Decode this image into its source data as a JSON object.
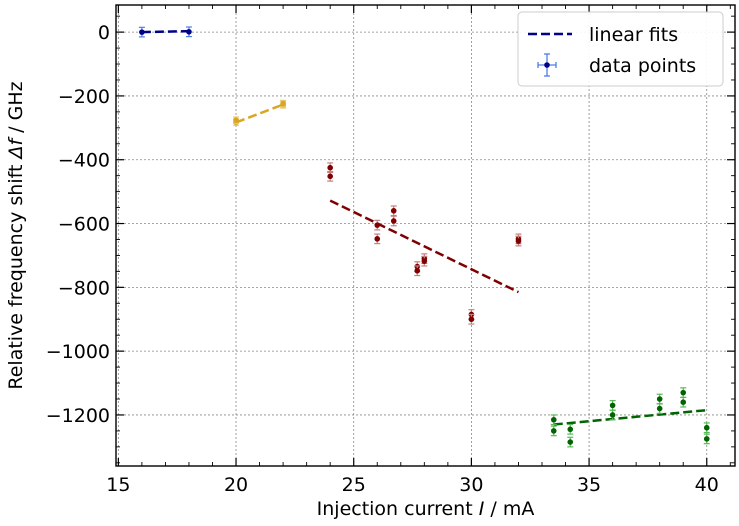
{
  "chart_data": {
    "type": "scatter",
    "xlabel": "Injection current",
    "xlabel_symbol": "I",
    "xlabel_unit": "/ mA",
    "ylabel": "Relative frequency shift",
    "ylabel_symbol": "Δf",
    "ylabel_unit": "/ GHz",
    "xlim": [
      14.9,
      41.2
    ],
    "ylim": [
      -1360,
      85
    ],
    "xticks": [
      15,
      20,
      25,
      30,
      35,
      40
    ],
    "xtick_labels": [
      "15",
      "20",
      "25",
      "30",
      "35",
      "40"
    ],
    "yticks": [
      0,
      -200,
      -400,
      -600,
      -800,
      -1000,
      -1200
    ],
    "ytick_labels": [
      "0",
      "−200",
      "−400",
      "−600",
      "−800",
      "−1000",
      "−1200"
    ],
    "grid": true,
    "legend": {
      "placement": "top-right",
      "fit_label": "linear fits",
      "points_label": "data points"
    },
    "groups": [
      {
        "color": "#00008b",
        "errorbar_color": "#4f7ee8",
        "points": [
          {
            "x": 16,
            "y": 0,
            "err": 15
          },
          {
            "x": 18,
            "y": 1,
            "err": 15
          }
        ],
        "fit": {
          "x": [
            16,
            18
          ],
          "y": [
            0,
            3
          ]
        }
      },
      {
        "color": "#daa520",
        "errorbar_color": "#e8c870",
        "points": [
          {
            "x": 20,
            "y": -282,
            "err": 10
          },
          {
            "x": 20,
            "y": -276,
            "err": 10
          },
          {
            "x": 22,
            "y": -228,
            "err": 10
          },
          {
            "x": 22,
            "y": -224,
            "err": 10
          }
        ],
        "fit": {
          "x": [
            20,
            22
          ],
          "y": [
            -283,
            -227
          ]
        }
      },
      {
        "color": "#800000",
        "errorbar_color": "#c48080",
        "points": [
          {
            "x": 24,
            "y": -425,
            "err": 15
          },
          {
            "x": 24,
            "y": -452,
            "err": 15
          },
          {
            "x": 26,
            "y": -605,
            "err": 15
          },
          {
            "x": 26,
            "y": -648,
            "err": 15
          },
          {
            "x": 26.7,
            "y": -560,
            "err": 15
          },
          {
            "x": 26.7,
            "y": -592,
            "err": 15
          },
          {
            "x": 27.7,
            "y": -735,
            "err": 15
          },
          {
            "x": 27.7,
            "y": -748,
            "err": 15
          },
          {
            "x": 28,
            "y": -710,
            "err": 15
          },
          {
            "x": 28,
            "y": -718,
            "err": 15
          },
          {
            "x": 30,
            "y": -885,
            "err": 15
          },
          {
            "x": 30,
            "y": -900,
            "err": 15
          },
          {
            "x": 32,
            "y": -648,
            "err": 15
          },
          {
            "x": 32,
            "y": -655,
            "err": 15
          }
        ],
        "fit": {
          "x": [
            24,
            32
          ],
          "y": [
            -528,
            -815
          ]
        }
      },
      {
        "color": "#006400",
        "errorbar_color": "#58b858",
        "points": [
          {
            "x": 33.5,
            "y": -1215,
            "err": 15
          },
          {
            "x": 33.5,
            "y": -1250,
            "err": 15
          },
          {
            "x": 34.2,
            "y": -1245,
            "err": 15
          },
          {
            "x": 34.2,
            "y": -1285,
            "err": 15
          },
          {
            "x": 36,
            "y": -1170,
            "err": 15
          },
          {
            "x": 36,
            "y": -1200,
            "err": 15
          },
          {
            "x": 38,
            "y": -1150,
            "err": 15
          },
          {
            "x": 38,
            "y": -1180,
            "err": 15
          },
          {
            "x": 39,
            "y": -1130,
            "err": 15
          },
          {
            "x": 39,
            "y": -1160,
            "err": 15
          },
          {
            "x": 40,
            "y": -1240,
            "err": 15
          },
          {
            "x": 40,
            "y": -1275,
            "err": 15
          }
        ],
        "fit": {
          "x": [
            33.5,
            40
          ],
          "y": [
            -1230,
            -1185
          ]
        }
      }
    ]
  }
}
